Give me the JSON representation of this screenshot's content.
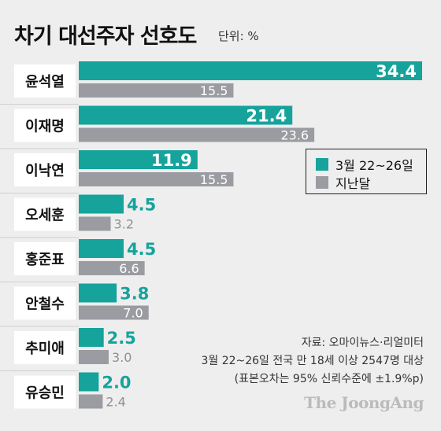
{
  "header": {
    "title": "차기 대선주자 선호도",
    "unit": "단위: %"
  },
  "colors": {
    "current": "#16a39c",
    "previous": "#9b9ca1",
    "label_box": "#ffffff"
  },
  "chart_data": {
    "type": "bar",
    "orientation": "horizontal",
    "categories": [
      "윤석열",
      "이재명",
      "이낙연",
      "오세훈",
      "홍준표",
      "안철수",
      "추미애",
      "유승민"
    ],
    "series": [
      {
        "name": "3월 22~26일",
        "values": [
          34.4,
          21.4,
          11.9,
          4.5,
          4.5,
          3.8,
          2.5,
          2.0
        ],
        "labels": [
          "34.4",
          "21.4",
          "11.9",
          "4.5",
          "4.5",
          "3.8",
          "2.5",
          "2.0"
        ]
      },
      {
        "name": "지난달",
        "values": [
          15.5,
          23.6,
          15.5,
          3.2,
          6.6,
          7.0,
          3.0,
          2.4
        ],
        "labels": [
          "15.5",
          "23.6",
          "15.5",
          "3.2",
          "6.6",
          "7.0",
          "3.0",
          "2.4"
        ]
      }
    ],
    "xlim": [
      0,
      34.4
    ],
    "legend_position": "right",
    "grid": false
  },
  "source": {
    "line1": "자료: 오마이뉴스·리얼미터",
    "line2": "3월 22~26일 전국 만 18세 이상 2547명 대상",
    "line3": "(표본오차는 95% 신뢰수준에 ±1.9%p)"
  },
  "logo": "The JoongAng"
}
